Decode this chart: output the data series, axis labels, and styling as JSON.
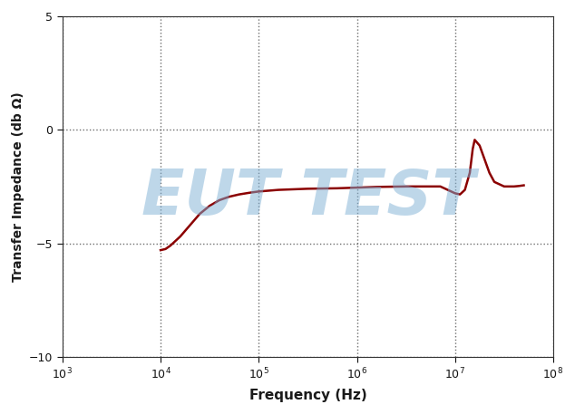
{
  "title": "",
  "xlabel": "Frequency (Hz)",
  "ylabel": "Transfer Impedance (db Ω)",
  "xlim_log": [
    3,
    8
  ],
  "ylim": [
    -10,
    5
  ],
  "yticks": [
    -10,
    -5,
    0,
    5
  ],
  "line_color": "#8B0000",
  "line_width": 1.8,
  "background_color": "#ffffff",
  "grid_color": "#555555",
  "watermark_text": "EUT TEST",
  "watermark_color": "#7EB0D5",
  "watermark_alpha": 0.5,
  "label_color": "#1a1a1a",
  "curve_points": {
    "log_freq": [
      4.0,
      4.05,
      4.1,
      4.2,
      4.3,
      4.4,
      4.5,
      4.6,
      4.7,
      4.8,
      4.9,
      5.0,
      5.2,
      5.5,
      5.8,
      6.0,
      6.2,
      6.5,
      6.7,
      6.85,
      7.0,
      7.05,
      7.1,
      7.15,
      7.18,
      7.2,
      7.22,
      7.25,
      7.3,
      7.35,
      7.4,
      7.5,
      7.6,
      7.65,
      7.7
    ],
    "values": [
      -5.3,
      -5.25,
      -5.1,
      -4.7,
      -4.2,
      -3.7,
      -3.35,
      -3.1,
      -2.95,
      -2.85,
      -2.78,
      -2.72,
      -2.65,
      -2.6,
      -2.58,
      -2.55,
      -2.52,
      -2.5,
      -2.5,
      -2.5,
      -2.8,
      -2.85,
      -2.65,
      -1.9,
      -0.85,
      -0.45,
      -0.55,
      -0.7,
      -1.3,
      -1.9,
      -2.3,
      -2.5,
      -2.5,
      -2.48,
      -2.45
    ]
  }
}
